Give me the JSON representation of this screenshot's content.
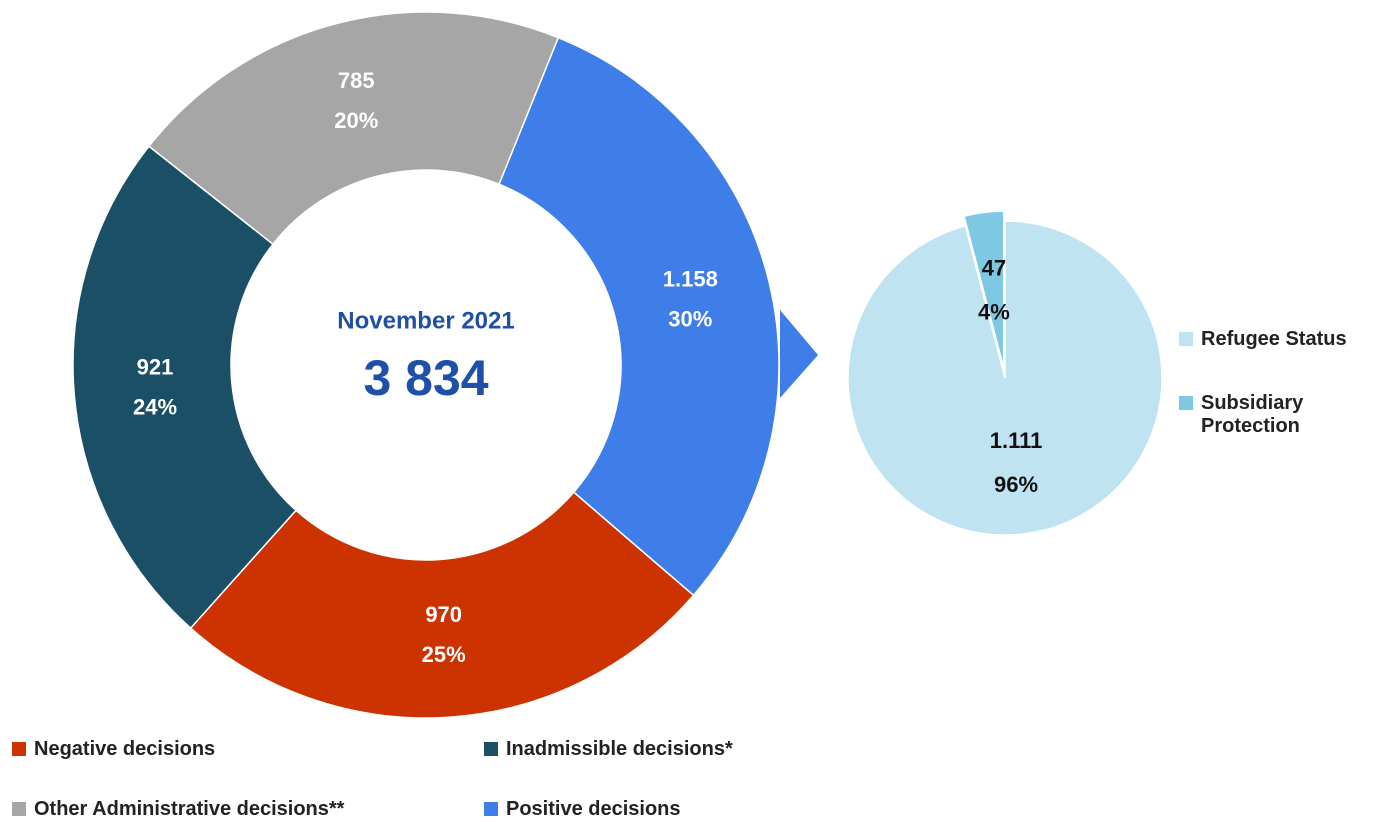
{
  "chart_data": [
    {
      "type": "donut",
      "annotations": [
        "November 2021",
        "3 834"
      ],
      "categories": [
        "Positive decisions",
        "Negative decisions",
        "Inadmissible decisions*",
        "Other Administrative decisions**"
      ],
      "values": [
        1158,
        970,
        921,
        785
      ],
      "value_labels": [
        "1.158",
        "970",
        "921",
        "785"
      ],
      "percentages": [
        30,
        25,
        24,
        20
      ],
      "percentage_labels": [
        "30%",
        "25%",
        "24%",
        "20%"
      ],
      "colors": [
        "#3f7de8",
        "#cc3300",
        "#1a4f66",
        "#a6a6a6"
      ]
    },
    {
      "type": "pie",
      "categories": [
        "Refugee Status",
        "Subsidiary Protection"
      ],
      "values": [
        1111,
        47
      ],
      "value_labels": [
        "1.111",
        "47"
      ],
      "percentages": [
        96,
        4
      ],
      "percentage_labels": [
        "96%",
        "4%"
      ],
      "colors": [
        "#c0e3f2",
        "#7ec8e3"
      ]
    }
  ]
}
